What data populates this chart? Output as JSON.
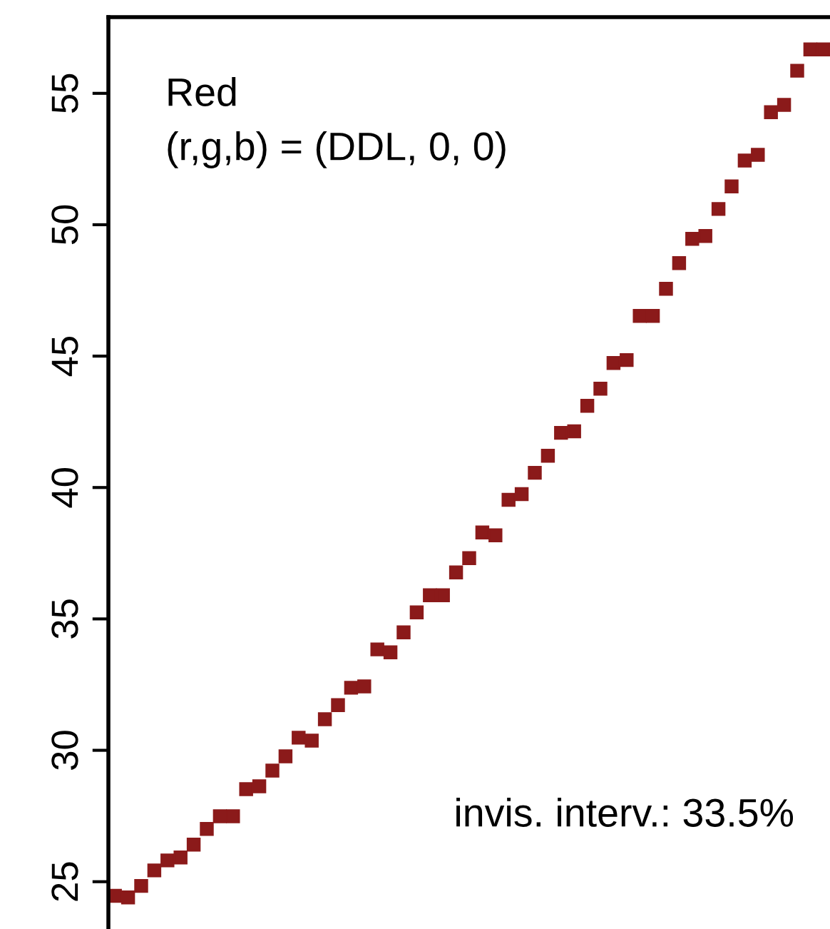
{
  "chart_data": {
    "type": "scatter",
    "title": "Red",
    "subtitle": "(r,g,b) = (DDL, 0, 0)",
    "annotations": [
      "invis. interv.: 33.5%"
    ],
    "categories": [
      null,
      null,
      null,
      null,
      null,
      null,
      null,
      null,
      null,
      null,
      null,
      null,
      null,
      null,
      null,
      null,
      null,
      null,
      null,
      null,
      null,
      null,
      null,
      null,
      null,
      null,
      null,
      null,
      null,
      null,
      null,
      null,
      null,
      null,
      null,
      null,
      null,
      null,
      null,
      null,
      null,
      null,
      null,
      null,
      null,
      null,
      null,
      null,
      null,
      null,
      null,
      null,
      null,
      null,
      null
    ],
    "values": [
      24.46,
      24.4,
      24.84,
      25.43,
      25.81,
      25.92,
      26.41,
      27.01,
      27.49,
      27.49,
      28.52,
      28.63,
      29.23,
      29.77,
      30.48,
      30.37,
      31.18,
      31.72,
      32.38,
      32.43,
      33.84,
      33.73,
      34.49,
      35.25,
      35.9,
      35.9,
      36.77,
      37.31,
      38.29,
      38.18,
      39.53,
      39.75,
      40.56,
      41.21,
      42.08,
      42.14,
      43.11,
      43.76,
      44.74,
      44.85,
      46.53,
      46.53,
      47.56,
      48.54,
      49.46,
      49.57,
      50.6,
      51.46,
      52.44,
      52.66,
      54.28,
      54.56,
      55.86,
      56.67,
      56.67
    ],
    "color": "#8b1a1a",
    "marker": "square",
    "ylim": [
      23.2,
      57.9
    ],
    "yticks": [
      25,
      30,
      35,
      40,
      45,
      50,
      55
    ],
    "tick_labels": "y",
    "grid": false,
    "legend": false
  }
}
